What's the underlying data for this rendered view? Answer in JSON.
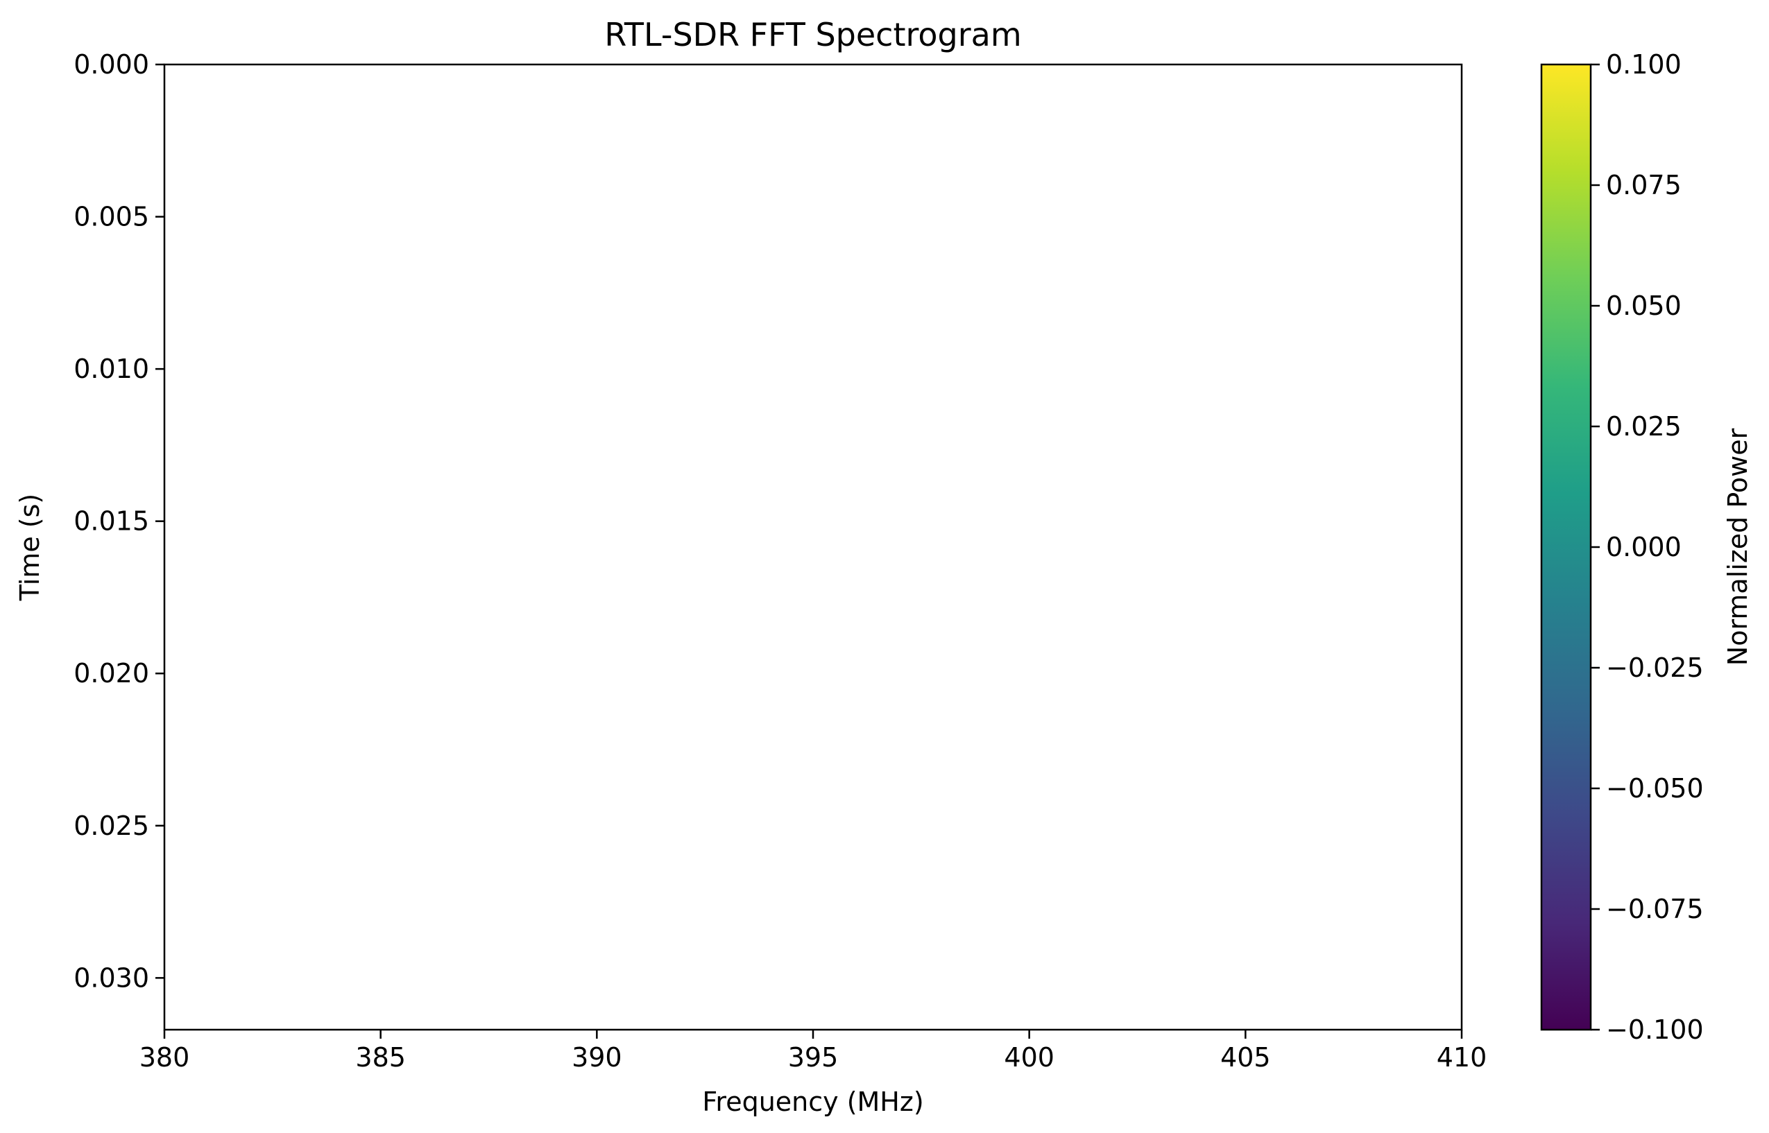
{
  "chart_data": {
    "type": "heatmap",
    "title": "RTL-SDR FFT Spectrogram",
    "xlabel": "Frequency (MHz)",
    "ylabel": "Time (s)",
    "xlim": [
      380,
      410
    ],
    "ylim": [
      0.0,
      0.0317
    ],
    "y_inverted": true,
    "grid": false,
    "x_ticks": [
      380,
      385,
      390,
      395,
      400,
      405,
      410
    ],
    "x_tick_labels": [
      "380",
      "385",
      "390",
      "395",
      "400",
      "405",
      "410"
    ],
    "y_ticks": [
      0.0,
      0.005,
      0.01,
      0.015,
      0.02,
      0.025,
      0.03
    ],
    "y_tick_labels": [
      "0.000",
      "0.005",
      "0.010",
      "0.015",
      "0.020",
      "0.025",
      "0.030"
    ],
    "values": [],
    "colorbar": {
      "label": "Normalized Power",
      "colormap": "viridis",
      "range": [
        -0.1,
        0.1
      ],
      "ticks": [
        0.1,
        0.075,
        0.05,
        0.025,
        0.0,
        -0.025,
        -0.05,
        -0.075,
        -0.1
      ],
      "tick_labels": [
        "0.100",
        "0.075",
        "0.050",
        "0.025",
        "0.000",
        "−0.025",
        "−0.050",
        "−0.075",
        "−0.100"
      ],
      "colors": [
        "#440154",
        "#482878",
        "#3e4989",
        "#31688e",
        "#26828e",
        "#1f9e89",
        "#35b779",
        "#6ece58",
        "#b5de2b",
        "#fde725"
      ]
    }
  }
}
